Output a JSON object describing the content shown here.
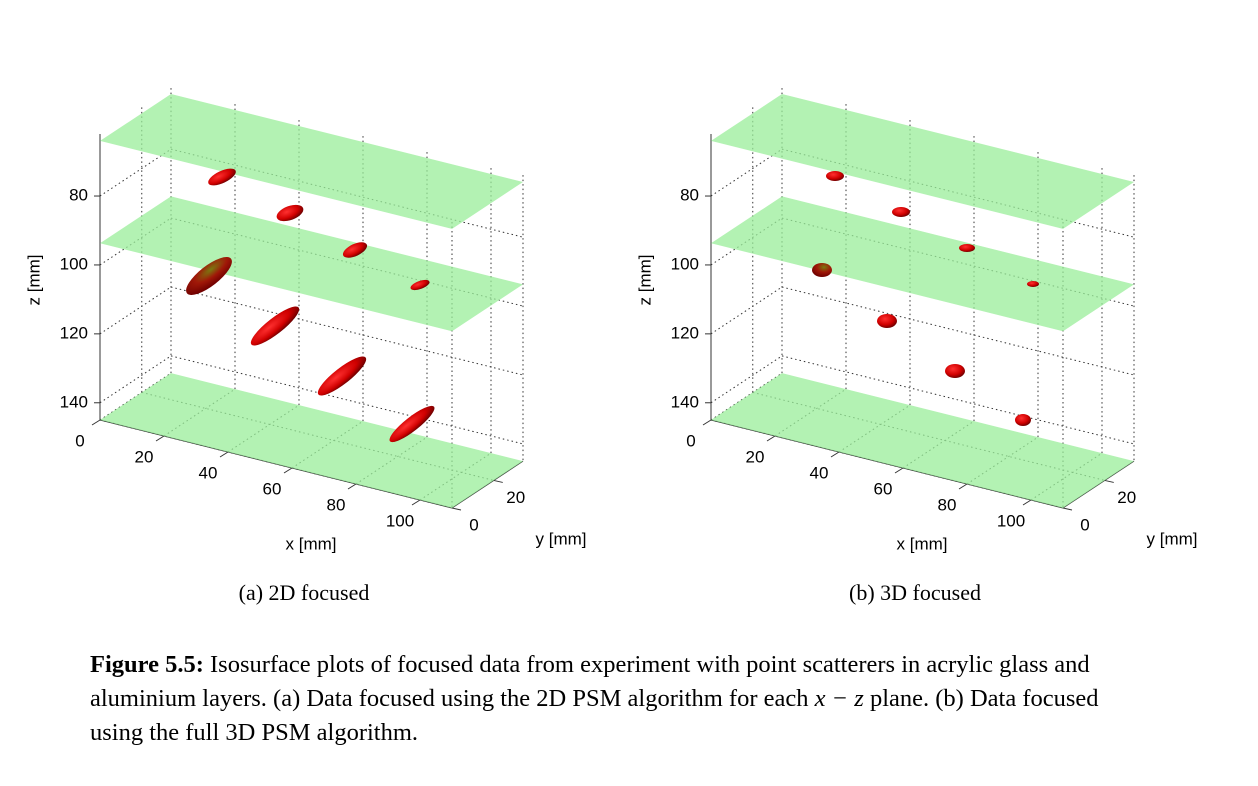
{
  "figures": [
    {
      "subcaption": "(a) 2D focused",
      "x_label": "x [mm]",
      "y_label": "y [mm]",
      "z_label": "z [mm]",
      "xlim": [
        0,
        110
      ],
      "ylim": [
        0,
        34
      ],
      "zlim": [
        62,
        145
      ],
      "xticks": [
        0,
        20,
        40,
        60,
        80,
        100
      ],
      "yticks": [
        0,
        20
      ],
      "zticks": [
        80,
        100,
        120,
        140
      ]
    },
    {
      "subcaption": "(b) 3D focused",
      "x_label": "x [mm]",
      "y_label": "y [mm]",
      "z_label": "z [mm]",
      "xlim": [
        0,
        110
      ],
      "ylim": [
        0,
        34
      ],
      "zlim": [
        62,
        145
      ],
      "xticks": [
        0,
        20,
        40,
        60,
        80,
        100
      ],
      "yticks": [
        0,
        20
      ],
      "zticks": [
        80,
        100,
        120,
        140
      ]
    }
  ],
  "caption": {
    "label": "Figure 5.5:",
    "text_1": "Isosurface plots of focused data from experiment with point scatterers in acrylic glass and aluminium layers. (a) Data focused using the 2D PSM algorithm for each",
    "math": "x − z",
    "text_2": "plane. (b) Data focused using the full 3D PSM algorithm."
  }
}
